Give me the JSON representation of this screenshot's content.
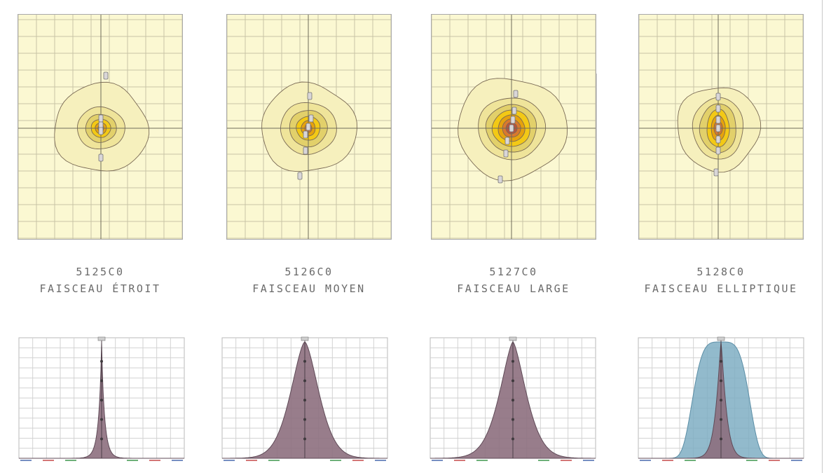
{
  "colors": {
    "background": "#fbf8d2",
    "grid": "#c8c4a6",
    "axes": "#6f6b5a",
    "iso_levels": [
      "#f6f0bd",
      "#efe49a",
      "#e2d06a",
      "#f3c915",
      "#e6a20d",
      "#d9792e",
      "#b7523e",
      "#8a3c3c"
    ],
    "curve_main": "#8d6f7e",
    "curve_secondary": "#7faec3"
  },
  "products": [
    {
      "code": "5125C0",
      "name": "FAISCEAU ÉTROIT",
      "beam": "narrow"
    },
    {
      "code": "5126C0",
      "name": "FAISCEAU MOYEN",
      "beam": "medium"
    },
    {
      "code": "5127C0",
      "name": "FAISCEAU LARGE",
      "beam": "wide"
    },
    {
      "code": "5128C0",
      "name": "FAISCEAU ELLIPTIQUE",
      "beam": "elliptical"
    }
  ]
}
